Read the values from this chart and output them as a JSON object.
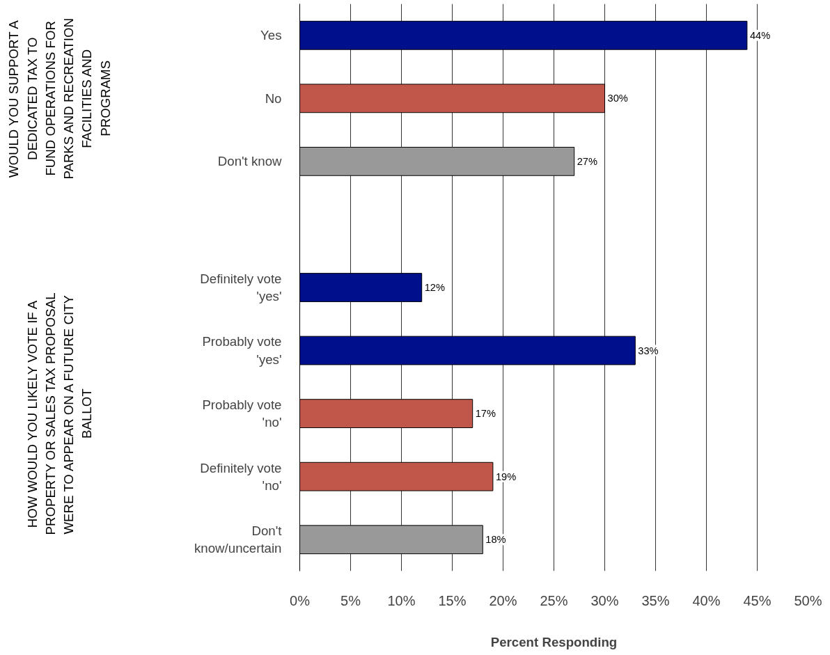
{
  "chart_data": {
    "type": "bar",
    "orientation": "horizontal",
    "xlabel": "Percent Responding",
    "categories": [
      "Yes",
      "No",
      "Don't know",
      null,
      "Definitely vote 'yes'",
      "Probably vote 'yes'",
      "Probably vote 'no'",
      "Definitely vote 'no'",
      "Don't know/uncertain"
    ],
    "values": [
      44,
      30,
      27,
      null,
      12,
      33,
      17,
      19,
      18
    ],
    "colors": [
      "#000f8c",
      "#c0574a",
      "#999999",
      null,
      "#000f8c",
      "#000f8c",
      "#c0574a",
      "#c0574a",
      "#999999"
    ],
    "value_labels": [
      "44%",
      "30%",
      "27%",
      null,
      "12%",
      "33%",
      "17%",
      "19%",
      "18%"
    ],
    "xlim": [
      0,
      50
    ],
    "xticks": [
      {
        "value": 0,
        "label": "0%"
      },
      {
        "value": 5,
        "label": "5%"
      },
      {
        "value": 10,
        "label": "10%"
      },
      {
        "value": 15,
        "label": "15%"
      },
      {
        "value": 20,
        "label": "20%"
      },
      {
        "value": 25,
        "label": "25%"
      },
      {
        "value": 30,
        "label": "30%"
      },
      {
        "value": 35,
        "label": "35%"
      },
      {
        "value": 40,
        "label": "40%"
      },
      {
        "value": 45,
        "label": "45%"
      },
      {
        "value": 50,
        "label": "50%"
      }
    ],
    "grid": "x",
    "annotations": [
      "WOULD YOU SUPPORT A DEDICATED TAX TO FUND OPERATIONS FOR PARKS AND RECREATION FACILITIES AND PROGRAMS",
      "HOW WOULD YOU LIKELY VOTE IF A PROPERTY OR SALES TAX PROPOSAL WERE TO APPEAR ON A FUTURE CITY BALLOT"
    ]
  }
}
